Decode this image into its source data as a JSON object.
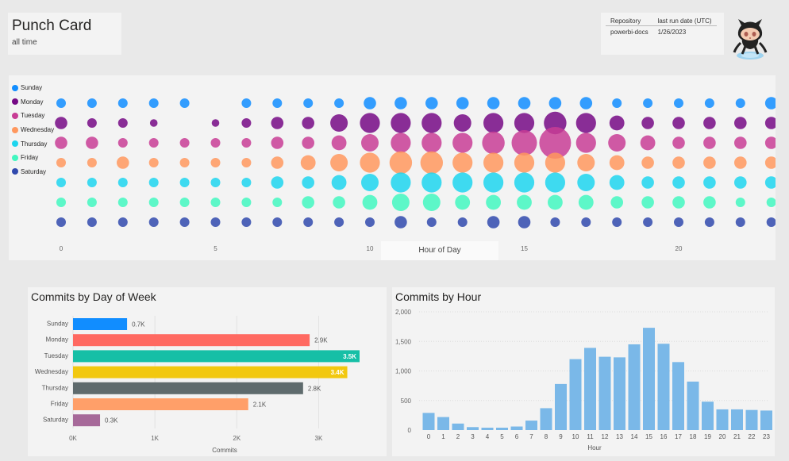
{
  "header": {
    "title": "Punch Card",
    "subtitle": "all time"
  },
  "repo_table": {
    "headers": [
      "Repository",
      "last run date (UTC)"
    ],
    "rows": [
      [
        "powerbi-docs",
        "1/26/2023"
      ]
    ]
  },
  "colors": {
    "Sunday": "#118DFF",
    "Monday": "#750985",
    "Tuesday": "#C83D95",
    "Wednesday": "#FF985E",
    "Thursday": "#1DD5EE",
    "Friday": "#42F7C0",
    "Saturday": "#3049AD"
  },
  "chart_data": [
    {
      "type": "scatter",
      "xlabel": "Hour of Day",
      "x_ticks": [
        "0",
        "5",
        "10",
        "15",
        "20"
      ],
      "xlim": [
        0,
        23
      ],
      "hours": [
        0,
        1,
        2,
        3,
        4,
        5,
        6,
        7,
        8,
        9,
        10,
        11,
        12,
        13,
        14,
        15,
        16,
        17,
        18,
        19,
        20,
        21,
        22,
        23
      ],
      "series": [
        {
          "name": "Sunday",
          "sizes": [
            2,
            2,
            2,
            2,
            2,
            0,
            2,
            2,
            2,
            2,
            3,
            3,
            3,
            3,
            3,
            3,
            3,
            3,
            2,
            2,
            2,
            2,
            2,
            3
          ]
        },
        {
          "name": "Monday",
          "sizes": [
            3,
            2,
            2,
            1,
            0,
            1,
            2,
            3,
            3,
            5,
            6,
            6,
            6,
            5,
            6,
            6,
            7,
            6,
            4,
            3,
            3,
            3,
            3,
            3
          ]
        },
        {
          "name": "Tuesday",
          "sizes": [
            3,
            3,
            2,
            2,
            2,
            2,
            2,
            3,
            3,
            4,
            5,
            6,
            6,
            6,
            7,
            8,
            9,
            6,
            5,
            4,
            3,
            3,
            3,
            3
          ]
        },
        {
          "name": "Wednesday",
          "sizes": [
            2,
            2,
            3,
            2,
            2,
            2,
            2,
            3,
            4,
            5,
            6,
            7,
            7,
            6,
            6,
            6,
            6,
            5,
            4,
            3,
            3,
            3,
            3,
            3
          ]
        },
        {
          "name": "Thursday",
          "sizes": [
            2,
            2,
            2,
            2,
            2,
            2,
            2,
            3,
            3,
            4,
            5,
            6,
            6,
            6,
            6,
            6,
            6,
            5,
            4,
            3,
            3,
            3,
            3,
            3
          ]
        },
        {
          "name": "Friday",
          "sizes": [
            2,
            2,
            2,
            2,
            2,
            2,
            2,
            2,
            3,
            3,
            4,
            5,
            5,
            4,
            4,
            4,
            4,
            4,
            3,
            3,
            3,
            3,
            2,
            2
          ]
        },
        {
          "name": "Saturday",
          "sizes": [
            2,
            2,
            2,
            2,
            2,
            2,
            2,
            2,
            2,
            2,
            2,
            3,
            2,
            2,
            3,
            3,
            2,
            2,
            2,
            2,
            2,
            2,
            2,
            2
          ]
        }
      ]
    },
    {
      "type": "bar",
      "orientation": "horizontal",
      "title": "Commits by Day of Week",
      "xlabel": "Commits",
      "categories": [
        "Sunday",
        "Monday",
        "Tuesday",
        "Wednesday",
        "Thursday",
        "Friday",
        "Saturday"
      ],
      "values": [
        660,
        2890,
        3500,
        3350,
        2810,
        2140,
        330
      ],
      "data_labels": [
        "0.7K",
        "2.9K",
        "3.5K",
        "3.4K",
        "2.8K",
        "2.1K",
        "0.3K"
      ],
      "bar_colors": [
        "#118DFF",
        "#FF6961",
        "#16BFA6",
        "#F2C80F",
        "#5F6B6D",
        "#FF9F69",
        "#A66999"
      ],
      "label_colors": [
        "#555555",
        "#555555",
        "#ffffff",
        "#ffffff",
        "#555555",
        "#555555",
        "#555555"
      ],
      "x_ticks": [
        "0K",
        "1K",
        "2K",
        "3K"
      ],
      "xlim": [
        0,
        3500
      ]
    },
    {
      "type": "bar",
      "title": "Commits by Hour",
      "xlabel": "Hour",
      "categories": [
        "0",
        "1",
        "2",
        "3",
        "4",
        "5",
        "6",
        "7",
        "8",
        "9",
        "10",
        "11",
        "12",
        "13",
        "14",
        "15",
        "16",
        "17",
        "18",
        "19",
        "20",
        "21",
        "22",
        "23"
      ],
      "values": [
        290,
        220,
        110,
        50,
        40,
        40,
        60,
        160,
        370,
        780,
        1200,
        1390,
        1240,
        1230,
        1450,
        1730,
        1460,
        1150,
        820,
        480,
        350,
        350,
        340,
        330
      ],
      "y_ticks": [
        "0",
        "500",
        "1,000",
        "1,500",
        "2,000"
      ],
      "ylim": [
        0,
        2000
      ],
      "bar_color": "#7AB8E8"
    }
  ]
}
